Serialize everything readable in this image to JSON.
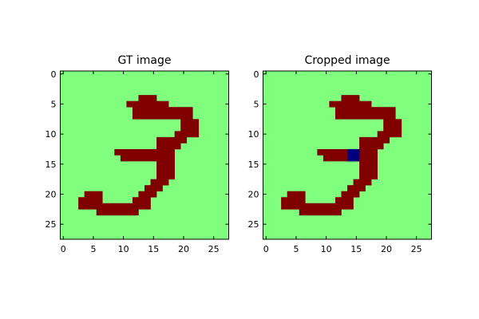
{
  "colors": {
    "background": "#80ff7e",
    "stroke": "#800000",
    "highlight": "#000080"
  },
  "chart_data": [
    {
      "type": "heatmap",
      "title": "GT image",
      "grid_size": [
        28,
        28
      ],
      "xlim": [
        -0.5,
        27.5
      ],
      "ylim": [
        27.5,
        -0.5
      ],
      "xticks": [
        0,
        5,
        10,
        15,
        20,
        25
      ],
      "yticks": [
        0,
        5,
        10,
        15,
        20,
        25
      ],
      "grid": false,
      "rows": [
        {
          "y": 4,
          "runs": [
            [
              13,
              15
            ]
          ]
        },
        {
          "y": 5,
          "runs": [
            [
              11,
              17
            ]
          ]
        },
        {
          "y": 6,
          "runs": [
            [
              12,
              21
            ]
          ]
        },
        {
          "y": 7,
          "runs": [
            [
              12,
              21
            ]
          ]
        },
        {
          "y": 8,
          "runs": [
            [
              20,
              22
            ]
          ]
        },
        {
          "y": 9,
          "runs": [
            [
              20,
              22
            ]
          ]
        },
        {
          "y": 10,
          "runs": [
            [
              19,
              22
            ]
          ]
        },
        {
          "y": 11,
          "runs": [
            [
              16,
              20
            ]
          ]
        },
        {
          "y": 12,
          "runs": [
            [
              16,
              19
            ]
          ]
        },
        {
          "y": 13,
          "runs": [
            [
              9,
              18
            ]
          ]
        },
        {
          "y": 14,
          "runs": [
            [
              10,
              18
            ]
          ]
        },
        {
          "y": 15,
          "runs": [
            [
              16,
              18
            ]
          ]
        },
        {
          "y": 16,
          "runs": [
            [
              16,
              18
            ]
          ]
        },
        {
          "y": 17,
          "runs": [
            [
              16,
              18
            ]
          ]
        },
        {
          "y": 18,
          "runs": [
            [
              15,
              17
            ]
          ]
        },
        {
          "y": 19,
          "runs": [
            [
              14,
              16
            ]
          ]
        },
        {
          "y": 20,
          "runs": [
            [
              4,
              6
            ],
            [
              13,
              15
            ]
          ]
        },
        {
          "y": 21,
          "runs": [
            [
              3,
              6
            ],
            [
              12,
              14
            ]
          ]
        },
        {
          "y": 22,
          "runs": [
            [
              3,
              14
            ]
          ]
        },
        {
          "y": 23,
          "runs": [
            [
              6,
              12
            ]
          ]
        }
      ],
      "highlight_cells": []
    },
    {
      "type": "heatmap",
      "title": "Cropped image",
      "grid_size": [
        28,
        28
      ],
      "xlim": [
        -0.5,
        27.5
      ],
      "ylim": [
        27.5,
        -0.5
      ],
      "xticks": [
        0,
        5,
        10,
        15,
        20,
        25
      ],
      "yticks": [
        0,
        5,
        10,
        15,
        20,
        25
      ],
      "grid": false,
      "rows": [
        {
          "y": 4,
          "runs": [
            [
              13,
              15
            ]
          ]
        },
        {
          "y": 5,
          "runs": [
            [
              11,
              17
            ]
          ]
        },
        {
          "y": 6,
          "runs": [
            [
              12,
              21
            ]
          ]
        },
        {
          "y": 7,
          "runs": [
            [
              12,
              21
            ]
          ]
        },
        {
          "y": 8,
          "runs": [
            [
              20,
              22
            ]
          ]
        },
        {
          "y": 9,
          "runs": [
            [
              20,
              22
            ]
          ]
        },
        {
          "y": 10,
          "runs": [
            [
              19,
              22
            ]
          ]
        },
        {
          "y": 11,
          "runs": [
            [
              16,
              20
            ]
          ]
        },
        {
          "y": 12,
          "runs": [
            [
              16,
              19
            ]
          ]
        },
        {
          "y": 13,
          "runs": [
            [
              9,
              18
            ]
          ]
        },
        {
          "y": 14,
          "runs": [
            [
              10,
              18
            ]
          ]
        },
        {
          "y": 15,
          "runs": [
            [
              16,
              18
            ]
          ]
        },
        {
          "y": 16,
          "runs": [
            [
              16,
              18
            ]
          ]
        },
        {
          "y": 17,
          "runs": [
            [
              16,
              18
            ]
          ]
        },
        {
          "y": 18,
          "runs": [
            [
              15,
              17
            ]
          ]
        },
        {
          "y": 19,
          "runs": [
            [
              14,
              16
            ]
          ]
        },
        {
          "y": 20,
          "runs": [
            [
              4,
              6
            ],
            [
              13,
              15
            ]
          ]
        },
        {
          "y": 21,
          "runs": [
            [
              3,
              6
            ],
            [
              12,
              14
            ]
          ]
        },
        {
          "y": 22,
          "runs": [
            [
              3,
              14
            ]
          ]
        },
        {
          "y": 23,
          "runs": [
            [
              6,
              12
            ]
          ]
        }
      ],
      "highlight_cells": [
        [
          14,
          13
        ],
        [
          15,
          13
        ],
        [
          14,
          14
        ],
        [
          15,
          14
        ]
      ]
    }
  ]
}
